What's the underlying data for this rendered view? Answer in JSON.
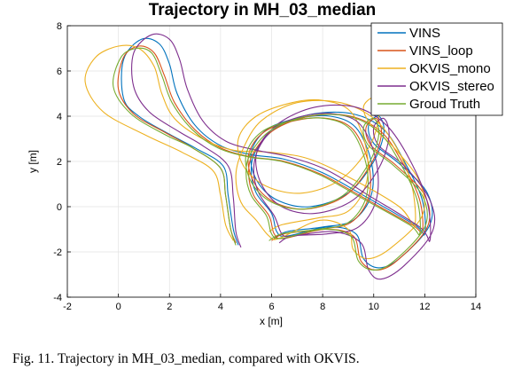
{
  "caption": "Fig. 11.  Trajectory in MH_03_median, compared with OKVIS.",
  "chart_data": {
    "type": "line",
    "title": "Trajectory in MH_03_median",
    "xlabel": "x [m]",
    "ylabel": "y [m]",
    "xlim": [
      -2,
      14
    ],
    "ylim": [
      -4,
      8
    ],
    "xticks": [
      -2,
      0,
      2,
      4,
      6,
      8,
      10,
      12,
      14
    ],
    "yticks": [
      -4,
      -2,
      0,
      2,
      4,
      6,
      8
    ],
    "grid": true,
    "legend_position": "top-right",
    "series": [
      {
        "name": "VINS",
        "color": "#0072BD",
        "points": [
          [
            4.7,
            -1.7
          ],
          [
            4.5,
            -1.0
          ],
          [
            4.3,
            0.5
          ],
          [
            4.1,
            1.8
          ],
          [
            3.0,
            2.6
          ],
          [
            2.0,
            3.2
          ],
          [
            0.8,
            4.0
          ],
          [
            0.2,
            4.8
          ],
          [
            0.2,
            6.5
          ],
          [
            0.9,
            7.4
          ],
          [
            1.6,
            7.2
          ],
          [
            2.0,
            6.3
          ],
          [
            2.3,
            5.0
          ],
          [
            3.0,
            3.6
          ],
          [
            4.0,
            2.7
          ],
          [
            5.2,
            2.3
          ],
          [
            6.5,
            2.1
          ],
          [
            8.0,
            1.5
          ],
          [
            9.6,
            0.5
          ],
          [
            11.6,
            -0.8
          ],
          [
            12.0,
            -1.2
          ],
          [
            11.9,
            0.3
          ],
          [
            11.2,
            2.0
          ],
          [
            10.4,
            3.4
          ],
          [
            9.2,
            4.1
          ],
          [
            7.6,
            4.1
          ],
          [
            6.2,
            3.5
          ],
          [
            5.4,
            2.5
          ],
          [
            5.2,
            1.6
          ],
          [
            5.4,
            0.6
          ],
          [
            6.0,
            -0.3
          ],
          [
            6.2,
            -1.1
          ],
          [
            6.6,
            -1.3
          ],
          [
            8.2,
            -0.9
          ],
          [
            9.3,
            -1.2
          ],
          [
            9.6,
            -2.3
          ],
          [
            10.2,
            -2.7
          ],
          [
            11.0,
            -2.3
          ],
          [
            12.2,
            -0.8
          ],
          [
            12.1,
            0.6
          ],
          [
            11.0,
            1.9
          ],
          [
            10.0,
            2.8
          ],
          [
            9.8,
            3.6
          ],
          [
            10.2,
            4.0
          ],
          [
            10.4,
            3.3
          ],
          [
            10.0,
            2.0
          ],
          [
            9.0,
            0.6
          ],
          [
            7.5,
            0.0
          ],
          [
            6.2,
            0.3
          ],
          [
            5.4,
            1.2
          ],
          [
            5.2,
            2.4
          ],
          [
            5.8,
            3.4
          ],
          [
            7.0,
            3.9
          ],
          [
            8.3,
            4.0
          ],
          [
            9.3,
            3.5
          ],
          [
            9.9,
            2.0
          ],
          [
            9.9,
            0.5
          ],
          [
            9.2,
            -0.6
          ],
          [
            8.0,
            -0.9
          ],
          [
            6.6,
            -1.1
          ],
          [
            6.1,
            -1.4
          ]
        ]
      },
      {
        "name": "VINS_loop",
        "color": "#D95319",
        "points": [
          [
            4.6,
            -1.6
          ],
          [
            4.4,
            -1.0
          ],
          [
            4.2,
            0.5
          ],
          [
            4.0,
            1.7
          ],
          [
            2.9,
            2.6
          ],
          [
            1.8,
            3.3
          ],
          [
            0.6,
            4.1
          ],
          [
            0.0,
            5.2
          ],
          [
            0.2,
            6.6
          ],
          [
            0.8,
            7.1
          ],
          [
            1.4,
            6.8
          ],
          [
            1.8,
            5.8
          ],
          [
            2.2,
            4.6
          ],
          [
            3.0,
            3.4
          ],
          [
            4.0,
            2.6
          ],
          [
            5.2,
            2.2
          ],
          [
            6.5,
            2.0
          ],
          [
            8.0,
            1.4
          ],
          [
            9.6,
            0.4
          ],
          [
            11.5,
            -0.8
          ],
          [
            11.9,
            -1.1
          ],
          [
            11.8,
            0.3
          ],
          [
            11.1,
            2.0
          ],
          [
            10.3,
            3.3
          ],
          [
            9.1,
            4.0
          ],
          [
            7.5,
            4.0
          ],
          [
            6.1,
            3.4
          ],
          [
            5.3,
            2.4
          ],
          [
            5.1,
            1.5
          ],
          [
            5.3,
            0.5
          ],
          [
            5.9,
            -0.4
          ],
          [
            6.1,
            -1.2
          ],
          [
            6.5,
            -1.4
          ],
          [
            8.1,
            -1.0
          ],
          [
            9.2,
            -1.3
          ],
          [
            9.5,
            -2.4
          ],
          [
            10.1,
            -2.8
          ],
          [
            10.9,
            -2.4
          ],
          [
            12.1,
            -0.9
          ],
          [
            12.0,
            0.5
          ],
          [
            10.9,
            1.8
          ],
          [
            9.9,
            2.7
          ],
          [
            9.7,
            3.5
          ],
          [
            10.1,
            3.9
          ],
          [
            10.3,
            3.2
          ],
          [
            9.9,
            1.9
          ],
          [
            8.9,
            0.5
          ],
          [
            7.4,
            -0.1
          ],
          [
            6.1,
            0.2
          ],
          [
            5.3,
            1.1
          ],
          [
            5.1,
            2.3
          ],
          [
            5.7,
            3.3
          ],
          [
            6.9,
            3.8
          ],
          [
            8.2,
            3.9
          ],
          [
            9.2,
            3.4
          ],
          [
            9.8,
            1.9
          ],
          [
            9.8,
            0.4
          ],
          [
            9.1,
            -0.7
          ],
          [
            7.9,
            -1.0
          ],
          [
            6.5,
            -1.2
          ],
          [
            6.0,
            -1.5
          ]
        ]
      },
      {
        "name": "OKVIS_mono",
        "color": "#EDB120",
        "points": [
          [
            4.5,
            -1.5
          ],
          [
            4.2,
            -0.8
          ],
          [
            4.0,
            0.5
          ],
          [
            3.7,
            1.6
          ],
          [
            2.5,
            2.4
          ],
          [
            1.0,
            3.2
          ],
          [
            -0.6,
            4.2
          ],
          [
            -1.3,
            5.5
          ],
          [
            -0.9,
            6.6
          ],
          [
            0.0,
            7.1
          ],
          [
            0.8,
            7.0
          ],
          [
            1.4,
            6.2
          ],
          [
            1.7,
            5.0
          ],
          [
            2.2,
            3.9
          ],
          [
            3.3,
            3.0
          ],
          [
            4.5,
            2.5
          ],
          [
            6.0,
            2.4
          ],
          [
            7.5,
            2.1
          ],
          [
            9.2,
            1.2
          ],
          [
            11.0,
            0.0
          ],
          [
            11.6,
            -0.8
          ],
          [
            11.5,
            0.9
          ],
          [
            10.9,
            2.6
          ],
          [
            10.0,
            3.9
          ],
          [
            8.7,
            4.6
          ],
          [
            7.0,
            4.6
          ],
          [
            5.6,
            3.8
          ],
          [
            4.9,
            2.6
          ],
          [
            4.6,
            1.4
          ],
          [
            4.8,
            0.2
          ],
          [
            5.4,
            -0.6
          ],
          [
            5.9,
            -1.3
          ],
          [
            6.3,
            -1.4
          ],
          [
            7.9,
            -0.6
          ],
          [
            9.0,
            -1.0
          ],
          [
            9.2,
            -1.9
          ],
          [
            9.8,
            -2.3
          ],
          [
            10.7,
            -1.8
          ],
          [
            11.9,
            -0.4
          ],
          [
            11.8,
            1.1
          ],
          [
            10.8,
            2.6
          ],
          [
            9.9,
            3.6
          ],
          [
            9.6,
            4.4
          ],
          [
            10.0,
            4.8
          ],
          [
            10.2,
            4.0
          ],
          [
            9.8,
            2.6
          ],
          [
            8.7,
            1.2
          ],
          [
            7.2,
            0.6
          ],
          [
            5.8,
            0.9
          ],
          [
            4.9,
            1.8
          ],
          [
            4.7,
            3.0
          ],
          [
            5.4,
            4.0
          ],
          [
            6.8,
            4.6
          ],
          [
            8.0,
            4.7
          ],
          [
            9.1,
            4.2
          ],
          [
            9.7,
            2.6
          ],
          [
            9.7,
            1.0
          ],
          [
            9.0,
            -0.2
          ],
          [
            7.8,
            -0.5
          ],
          [
            6.4,
            -0.8
          ],
          [
            5.9,
            -1.1
          ]
        ]
      },
      {
        "name": "OKVIS_stereo",
        "color": "#7E2F8E",
        "points": [
          [
            4.8,
            -1.8
          ],
          [
            4.6,
            -1.1
          ],
          [
            4.5,
            0.4
          ],
          [
            4.3,
            1.8
          ],
          [
            3.3,
            2.7
          ],
          [
            2.4,
            3.3
          ],
          [
            1.2,
            4.2
          ],
          [
            0.6,
            5.3
          ],
          [
            0.6,
            6.8
          ],
          [
            1.3,
            7.6
          ],
          [
            2.0,
            7.4
          ],
          [
            2.4,
            6.5
          ],
          [
            2.7,
            5.2
          ],
          [
            3.3,
            3.8
          ],
          [
            4.2,
            2.9
          ],
          [
            5.4,
            2.5
          ],
          [
            6.7,
            2.2
          ],
          [
            8.2,
            1.6
          ],
          [
            9.8,
            0.5
          ],
          [
            11.8,
            -0.9
          ],
          [
            12.2,
            -1.5
          ],
          [
            12.1,
            0.2
          ],
          [
            11.4,
            2.1
          ],
          [
            10.5,
            3.6
          ],
          [
            9.3,
            4.4
          ],
          [
            7.7,
            4.4
          ],
          [
            6.3,
            3.7
          ],
          [
            5.5,
            2.6
          ],
          [
            5.3,
            1.6
          ],
          [
            5.5,
            0.6
          ],
          [
            6.1,
            -0.4
          ],
          [
            6.4,
            -1.2
          ],
          [
            6.8,
            -1.3
          ],
          [
            8.4,
            -1.1
          ],
          [
            9.5,
            -1.6
          ],
          [
            9.8,
            -2.8
          ],
          [
            10.3,
            -3.2
          ],
          [
            11.2,
            -2.6
          ],
          [
            12.3,
            -1.1
          ],
          [
            12.2,
            0.3
          ],
          [
            11.2,
            1.8
          ],
          [
            10.2,
            2.7
          ],
          [
            10.0,
            3.5
          ],
          [
            10.4,
            3.9
          ],
          [
            10.6,
            3.1
          ],
          [
            10.2,
            1.7
          ],
          [
            9.2,
            0.3
          ],
          [
            7.7,
            -0.3
          ],
          [
            6.4,
            0.0
          ],
          [
            5.6,
            1.0
          ],
          [
            5.4,
            2.3
          ],
          [
            6.0,
            3.4
          ],
          [
            7.2,
            4.0
          ],
          [
            8.5,
            4.1
          ],
          [
            9.5,
            3.6
          ],
          [
            10.1,
            2.0
          ],
          [
            10.1,
            0.3
          ],
          [
            9.4,
            -0.9
          ],
          [
            8.2,
            -1.2
          ],
          [
            6.8,
            -1.3
          ],
          [
            6.3,
            -1.6
          ]
        ]
      },
      {
        "name": "Groud Truth",
        "color": "#77AC30",
        "points": [
          [
            4.6,
            -1.7
          ],
          [
            4.4,
            -1.0
          ],
          [
            4.2,
            0.5
          ],
          [
            4.0,
            1.7
          ],
          [
            2.9,
            2.6
          ],
          [
            1.8,
            3.2
          ],
          [
            0.5,
            4.1
          ],
          [
            -0.2,
            5.3
          ],
          [
            0.1,
            6.6
          ],
          [
            0.7,
            7.0
          ],
          [
            1.3,
            6.8
          ],
          [
            1.7,
            5.8
          ],
          [
            2.1,
            4.6
          ],
          [
            2.9,
            3.4
          ],
          [
            3.9,
            2.6
          ],
          [
            5.1,
            2.2
          ],
          [
            6.4,
            2.0
          ],
          [
            7.9,
            1.4
          ],
          [
            9.5,
            0.4
          ],
          [
            11.4,
            -0.8
          ],
          [
            11.8,
            -1.2
          ],
          [
            11.7,
            0.3
          ],
          [
            11.0,
            2.0
          ],
          [
            10.2,
            3.3
          ],
          [
            9.0,
            4.0
          ],
          [
            7.4,
            4.0
          ],
          [
            6.0,
            3.4
          ],
          [
            5.2,
            2.4
          ],
          [
            5.0,
            1.5
          ],
          [
            5.2,
            0.5
          ],
          [
            5.8,
            -0.4
          ],
          [
            6.0,
            -1.2
          ],
          [
            6.4,
            -1.4
          ],
          [
            8.0,
            -1.0
          ],
          [
            9.1,
            -1.3
          ],
          [
            9.4,
            -2.4
          ],
          [
            10.0,
            -2.8
          ],
          [
            10.8,
            -2.4
          ],
          [
            12.0,
            -0.9
          ],
          [
            11.9,
            0.5
          ],
          [
            10.8,
            1.8
          ],
          [
            9.8,
            2.7
          ],
          [
            9.6,
            3.5
          ],
          [
            10.0,
            3.9
          ],
          [
            10.2,
            3.2
          ],
          [
            9.8,
            1.9
          ],
          [
            8.8,
            0.5
          ],
          [
            7.3,
            -0.1
          ],
          [
            6.0,
            0.2
          ],
          [
            5.2,
            1.1
          ],
          [
            5.0,
            2.3
          ],
          [
            5.6,
            3.3
          ],
          [
            6.8,
            3.8
          ],
          [
            8.1,
            3.9
          ],
          [
            9.1,
            3.4
          ],
          [
            9.7,
            1.9
          ],
          [
            9.7,
            0.4
          ],
          [
            9.0,
            -0.7
          ],
          [
            7.8,
            -1.0
          ],
          [
            6.4,
            -1.2
          ],
          [
            5.9,
            -1.5
          ]
        ]
      }
    ]
  }
}
